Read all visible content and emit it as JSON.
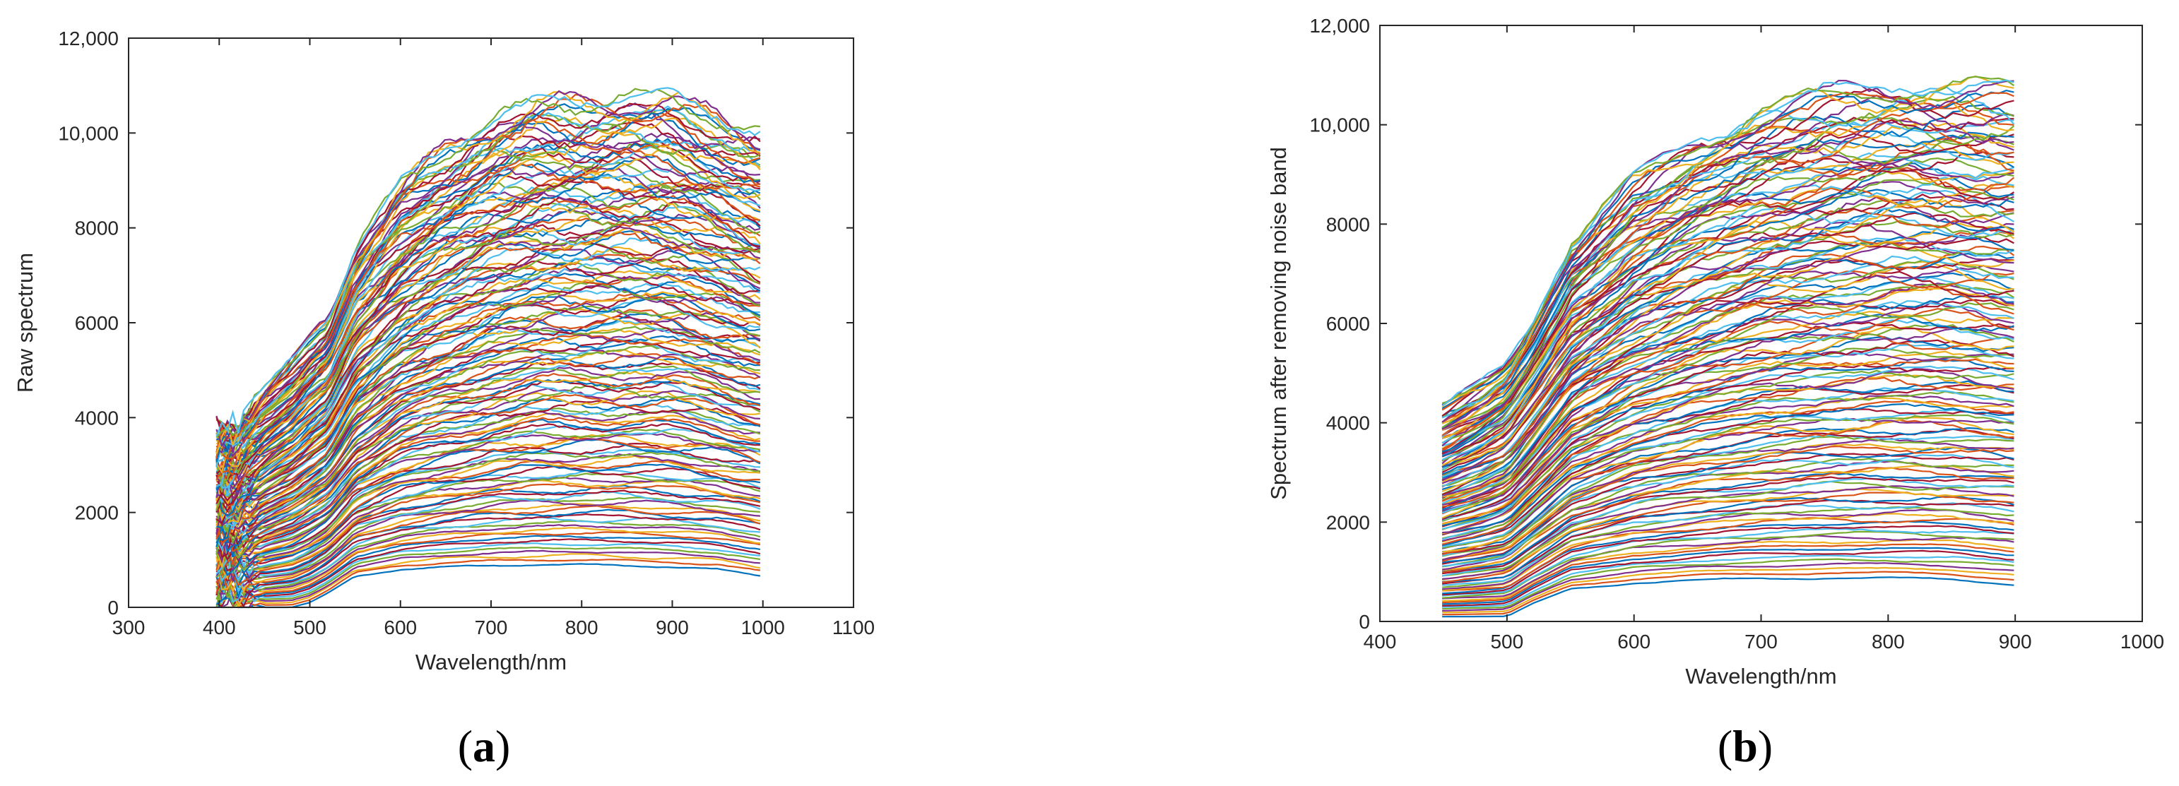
{
  "chart_data": [
    {
      "panel": "(a)",
      "panel_letter": "a",
      "type": "line",
      "title": "",
      "xlabel": "Wavelength/nm",
      "ylabel": "Raw spectrum",
      "xlim": [
        300,
        1100
      ],
      "ylim": [
        0,
        12000
      ],
      "xticks": [
        300,
        400,
        500,
        600,
        700,
        800,
        900,
        1000,
        1100
      ],
      "xtick_labels": [
        "300",
        "400",
        "500",
        "600",
        "700",
        "800",
        "900",
        "1000",
        "1100"
      ],
      "yticks": [
        0,
        2000,
        4000,
        6000,
        8000,
        10000,
        12000
      ],
      "ytick_labels": [
        "0",
        "2000",
        "4000",
        "6000",
        "8000",
        "10,000",
        "12,000"
      ],
      "grid": false,
      "legend": "none",
      "wavelength_range": [
        397,
        1002
      ],
      "envelope": {
        "x": [
          397,
          420,
          450,
          480,
          500,
          520,
          550,
          600,
          650,
          700,
          750,
          800,
          850,
          900,
          950,
          1002
        ],
        "upper": [
          3800,
          3900,
          4600,
          5200,
          5700,
          6100,
          7600,
          8900,
          9700,
          10300,
          10600,
          10700,
          10800,
          10700,
          10400,
          10000
        ],
        "lower": [
          0,
          0,
          0,
          0,
          100,
          300,
          650,
          800,
          850,
          880,
          900,
          900,
          880,
          850,
          800,
          650
        ]
      },
      "series_count": "hundreds of reflectance curves (multicolored)"
    },
    {
      "panel": "(b)",
      "panel_letter": "b",
      "type": "line",
      "title": "",
      "xlabel": "Wavelength/nm",
      "ylabel": "Spectrum after removing noise band",
      "xlim": [
        400,
        1000
      ],
      "ylim": [
        0,
        12000
      ],
      "xticks": [
        400,
        500,
        600,
        700,
        800,
        900,
        1000
      ],
      "xtick_labels": [
        "400",
        "500",
        "600",
        "700",
        "800",
        "900",
        "1000"
      ],
      "yticks": [
        0,
        2000,
        4000,
        6000,
        8000,
        10000,
        12000
      ],
      "ytick_labels": [
        "0",
        "2000",
        "4000",
        "6000",
        "8000",
        "10,000",
        "12,000"
      ],
      "grid": false,
      "legend": "none",
      "wavelength_range": [
        449,
        899
      ],
      "envelope": {
        "x": [
          449,
          480,
          500,
          520,
          550,
          600,
          650,
          700,
          750,
          800,
          850,
          899
        ],
        "upper": [
          4300,
          4800,
          5200,
          6100,
          7600,
          8900,
          9700,
          10300,
          10600,
          10800,
          10800,
          10700
        ],
        "lower": [
          100,
          100,
          100,
          350,
          650,
          780,
          830,
          860,
          880,
          870,
          850,
          750
        ]
      },
      "series_count": "hundreds of reflectance curves (multicolored)"
    }
  ],
  "colors": {
    "palette": [
      "#0072BD",
      "#D95319",
      "#EDB120",
      "#7E2F8E",
      "#77AC30",
      "#4DBEEE",
      "#A2142F"
    ],
    "axis": "#262626"
  }
}
